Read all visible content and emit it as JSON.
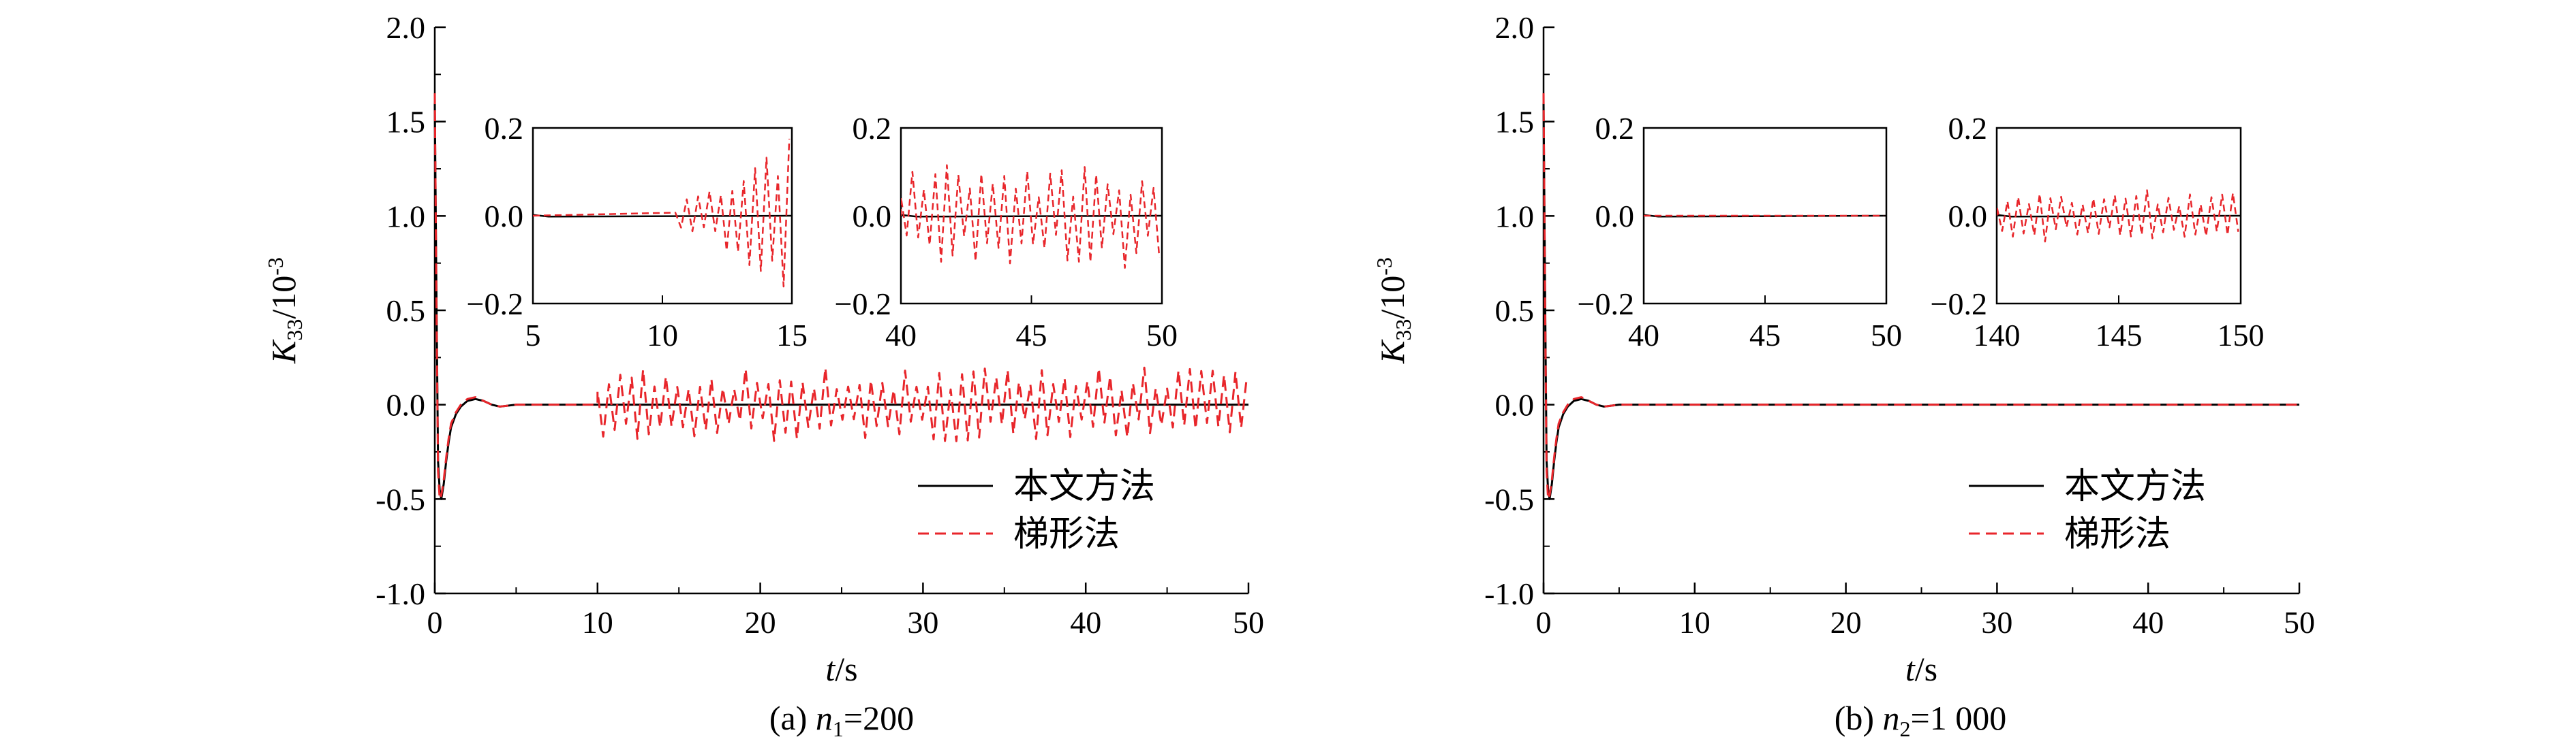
{
  "colors": {
    "proposed": "#000000",
    "trapezoid": "#e8262b",
    "axis": "#000000"
  },
  "chart_data": [
    {
      "type": "line",
      "panel_label": "(a) ",
      "caption_var": "n",
      "caption_sub": "1",
      "caption_value": "=200",
      "xlabel_var": "t",
      "xlabel_unit": "/s",
      "ylabel_var": "K",
      "ylabel_sub": "33",
      "ylabel_unit": "/10",
      "ylabel_exp": "-3",
      "xlim": [
        0,
        50
      ],
      "ylim": [
        -1.0,
        2.0
      ],
      "xticks": [
        "0",
        "10",
        "20",
        "30",
        "40",
        "50"
      ],
      "yticks": [
        "-1.0",
        "-0.5",
        "0.0",
        "0.5",
        "1.0",
        "1.5",
        "2.0"
      ],
      "legend": {
        "placement": "lower-right",
        "entries": [
          "本文方法",
          "梯形法"
        ]
      },
      "series": [
        {
          "name": "本文方法",
          "style": "solid",
          "x": [
            0,
            0.1,
            0.2,
            0.3,
            0.4,
            0.55,
            0.7,
            0.85,
            1.0,
            1.3,
            1.6,
            2.0,
            2.5,
            3.0,
            3.5,
            4.0,
            5.0,
            6.0,
            50
          ],
          "y": [
            1.6,
            0.6,
            -0.3,
            -0.45,
            -0.5,
            -0.42,
            -0.3,
            -0.2,
            -0.12,
            -0.05,
            -0.01,
            0.02,
            0.03,
            0.02,
            0.0,
            -0.01,
            0.0,
            0.0,
            0.0
          ]
        },
        {
          "name": "梯形法",
          "style": "dashed",
          "x": [
            0,
            0.1,
            0.2,
            0.3,
            0.4,
            0.55,
            0.7,
            0.85,
            1.0,
            1.3,
            1.6,
            2.0,
            2.5,
            3.0,
            3.5,
            4.0,
            5.0,
            6.0,
            10.0
          ],
          "y": [
            1.65,
            0.55,
            -0.35,
            -0.5,
            -0.48,
            -0.4,
            -0.28,
            -0.18,
            -0.1,
            -0.04,
            0.0,
            0.03,
            0.04,
            0.02,
            0.0,
            -0.01,
            0.0,
            0.0,
            0.0
          ],
          "oscillation": {
            "x_start": 10,
            "x_end": 50,
            "step": 0.35,
            "amplitude_max": 0.2
          }
        }
      ],
      "insets": [
        {
          "xlim": [
            5,
            15
          ],
          "ylim": [
            -0.2,
            0.2
          ],
          "xticks": [
            "5",
            "10",
            "15"
          ],
          "yticks": [
            "−0.2",
            "0.0",
            "0.2"
          ],
          "oscillation": {
            "x_start": 10.5,
            "x_end": 15,
            "step": 0.22,
            "amp_start": 0.02,
            "amp_end": 0.2
          }
        },
        {
          "xlim": [
            40,
            50
          ],
          "ylim": [
            -0.2,
            0.2
          ],
          "xticks": [
            "40",
            "45",
            "50"
          ],
          "yticks": [
            "−0.2",
            "0.0",
            "0.2"
          ],
          "oscillation": {
            "x_start": 40,
            "x_end": 50,
            "step": 0.22,
            "amp_start": 0.12,
            "amp_end": 0.12
          }
        }
      ]
    },
    {
      "type": "line",
      "panel_label": "(b) ",
      "caption_var": "n",
      "caption_sub": "2",
      "caption_value": "=1 000",
      "xlabel_var": "t",
      "xlabel_unit": "/s",
      "ylabel_var": "K",
      "ylabel_sub": "33",
      "ylabel_unit": "/10",
      "ylabel_exp": "-3",
      "xlim": [
        0,
        50
      ],
      "ylim": [
        -1.0,
        2.0
      ],
      "xticks": [
        "0",
        "10",
        "20",
        "30",
        "40",
        "50"
      ],
      "yticks": [
        "-1.0",
        "-0.5",
        "0.0",
        "0.5",
        "1.0",
        "1.5",
        "2.0"
      ],
      "legend": {
        "placement": "lower-right",
        "entries": [
          "本文方法",
          "梯形法"
        ]
      },
      "series": [
        {
          "name": "本文方法",
          "style": "solid",
          "x": [
            0,
            0.1,
            0.2,
            0.3,
            0.4,
            0.55,
            0.7,
            0.85,
            1.0,
            1.3,
            1.6,
            2.0,
            2.5,
            3.0,
            3.5,
            4.0,
            5.0,
            6.0,
            50
          ],
          "y": [
            1.6,
            0.6,
            -0.3,
            -0.45,
            -0.5,
            -0.42,
            -0.3,
            -0.2,
            -0.12,
            -0.05,
            -0.01,
            0.02,
            0.03,
            0.02,
            0.0,
            -0.01,
            0.0,
            0.0,
            0.0
          ]
        },
        {
          "name": "梯形法",
          "style": "dashed",
          "x": [
            0,
            0.1,
            0.2,
            0.3,
            0.4,
            0.55,
            0.7,
            0.85,
            1.0,
            1.3,
            1.6,
            2.0,
            2.5,
            3.0,
            3.5,
            4.0,
            5.0,
            6.0,
            50
          ],
          "y": [
            1.65,
            0.55,
            -0.35,
            -0.5,
            -0.48,
            -0.4,
            -0.28,
            -0.18,
            -0.1,
            -0.04,
            0.0,
            0.03,
            0.04,
            0.02,
            0.0,
            -0.01,
            0.0,
            0.0,
            0.0
          ]
        }
      ],
      "insets": [
        {
          "xlim": [
            40,
            50
          ],
          "ylim": [
            -0.2,
            0.2
          ],
          "xticks": [
            "40",
            "45",
            "50"
          ],
          "yticks": [
            "−0.2",
            "0.0",
            "0.2"
          ],
          "oscillation": {
            "x_start": 40,
            "x_end": 50,
            "step": 0.22,
            "amp_start": 0.0,
            "amp_end": 0.0
          }
        },
        {
          "xlim": [
            140,
            150
          ],
          "ylim": [
            -0.2,
            0.2
          ],
          "xticks": [
            "140",
            "145",
            "150"
          ],
          "yticks": [
            "−0.2",
            "0.0",
            "0.2"
          ],
          "oscillation": {
            "x_start": 140,
            "x_end": 150,
            "step": 0.22,
            "amp_start": 0.06,
            "amp_end": 0.06
          }
        }
      ]
    }
  ]
}
